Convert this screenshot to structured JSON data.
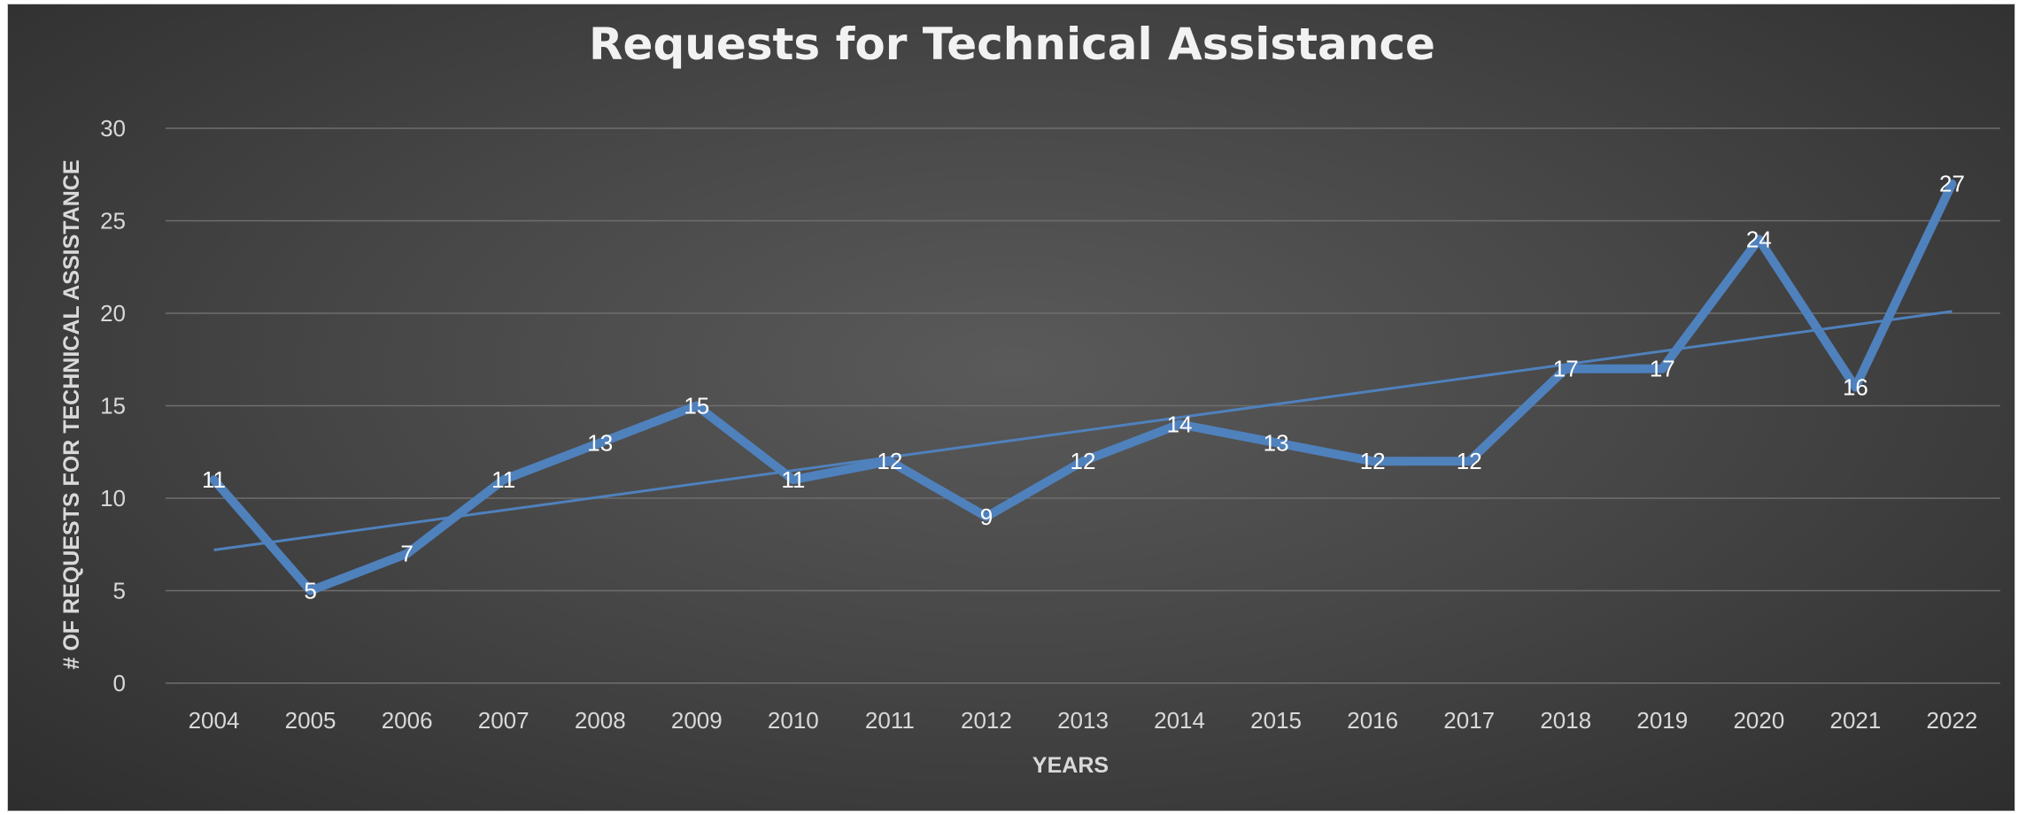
{
  "chart_data": {
    "type": "line",
    "title": "Requests for Technical Assistance",
    "xlabel": "YEARS",
    "ylabel": "# OF REQUESTS FOR TECHNICAL ASSISTANCE",
    "categories": [
      "2004",
      "2005",
      "2006",
      "2007",
      "2008",
      "2009",
      "2010",
      "2011",
      "2012",
      "2013",
      "2014",
      "2015",
      "2016",
      "2017",
      "2018",
      "2019",
      "2020",
      "2021",
      "2022"
    ],
    "series": [
      {
        "values": [
          11,
          5,
          7,
          11,
          13,
          15,
          11,
          12,
          9,
          12,
          14,
          13,
          12,
          12,
          17,
          17,
          24,
          16,
          27
        ],
        "color": "#4f81bd",
        "data_labels": true
      }
    ],
    "trendline": {
      "type": "linear",
      "start": 7.2,
      "end": 20.1,
      "color": "#4f81bd"
    },
    "ylim": [
      0,
      30
    ],
    "yticks": [
      0,
      5,
      10,
      15,
      20,
      25,
      30
    ],
    "grid": true,
    "legend": "none",
    "colors": {
      "background": "#474747",
      "text": "#d9d9d9",
      "gridline": "#6e6e6e"
    }
  }
}
